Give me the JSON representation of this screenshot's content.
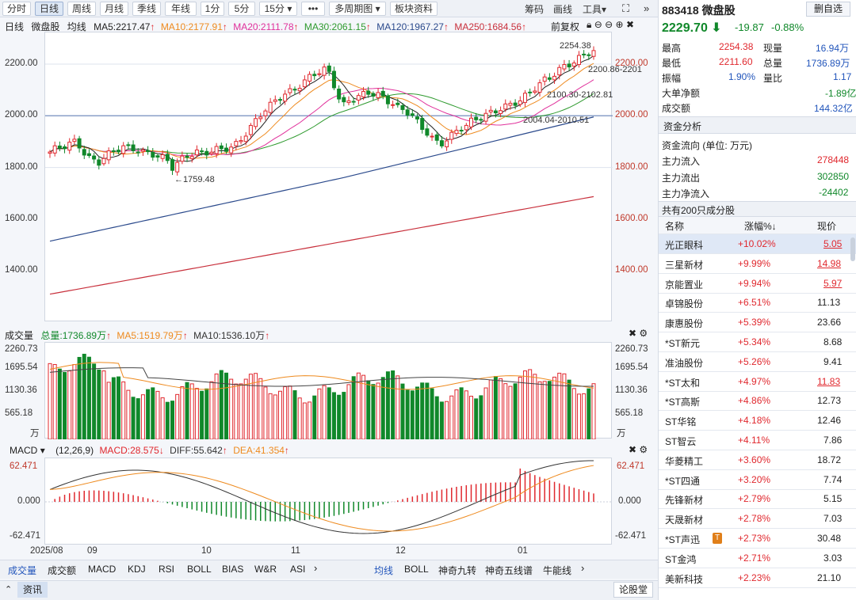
{
  "toolbar": {
    "buttons": [
      "分时",
      "日线",
      "周线",
      "月线",
      "季线",
      "年线",
      "1分",
      "5分",
      "15分",
      "•••",
      "多周期图",
      "板块资料"
    ],
    "right": [
      "筹码",
      "画线",
      "工具"
    ]
  },
  "legend_main": {
    "period": "日线",
    "name": "微盘股",
    "type": "均线",
    "ma5": "MA5:2217.47",
    "ma10": "MA10:2177.91",
    "ma20": "MA20:2111.78",
    "ma30": "MA30:2061.15",
    "ma120": "MA120:1967.27",
    "ma250": "MA250:1684.56",
    "adjust": "前复权"
  },
  "colors": {
    "ma5": "#222222",
    "ma10": "#ee8a1e",
    "ma20": "#e0309b",
    "ma30": "#2e9a2e",
    "ma120": "#2b4a8c",
    "ma250": "#c8303c",
    "up": "#e0282e",
    "down": "#10882a"
  },
  "main_axis": {
    "ticks": [
      "2200.00",
      "2000.00",
      "1800.00",
      "1600.00",
      "1400.00"
    ],
    "right_ticks": [
      "2200.00",
      "2000.00",
      "1800.00",
      "1600.00",
      "1400.00"
    ]
  },
  "annotations": {
    "high": "2254.38",
    "a1": "2200.86-2201",
    "a2": "2100.30-2102.81",
    "a3": "2004.04-2010.51",
    "low": "1759.48"
  },
  "volume": {
    "title": "成交量",
    "total": "总量:1736.89万",
    "ma5": "MA5:1519.79万",
    "ma10": "MA10:1536.10万",
    "ticks": [
      "2260.73",
      "1695.54",
      "1130.36",
      "565.18",
      "万"
    ]
  },
  "macd": {
    "title": "MACD",
    "params": "(12,26,9)",
    "macd": "MACD:28.575",
    "diff": "DIFF:55.642",
    "dea": "DEA:41.354",
    "ticks": [
      "62.471",
      "0.000",
      "-62.471"
    ]
  },
  "x_axis": [
    "2025/08",
    "09",
    "10",
    "11",
    "12",
    "01"
  ],
  "bottom_tabs_left": [
    "成交量",
    "成交额",
    "MACD",
    "KDJ",
    "RSI",
    "BOLL",
    "BIAS",
    "W&R",
    "ASI"
  ],
  "bottom_tabs_right": [
    "均线",
    "BOLL",
    "神奇九转",
    "神奇五线谱",
    "牛能线"
  ],
  "status": {
    "news": "资讯",
    "forum": "论股堂"
  },
  "quote": {
    "code": "883418",
    "name": "微盘股",
    "delete_btn": "删自选",
    "price": "2229.70",
    "change": "-19.87",
    "pct": "-0.88%",
    "stats": [
      {
        "l": "最高",
        "v": "2254.38",
        "l2": "现量",
        "v2": "16.94万"
      },
      {
        "l": "最低",
        "v": "2211.60",
        "l2": "总量",
        "v2": "1736.89万"
      },
      {
        "l": "振幅",
        "v": "1.90%",
        "l2": "量比",
        "v2": "1.17"
      }
    ],
    "big_net_label": "大单净额",
    "big_net": "-1.89亿",
    "turnover_label": "成交额",
    "turnover": "144.32亿"
  },
  "fund": {
    "section": "资金分析",
    "unit": "资金流向 (单位: 万元)",
    "inflow_label": "主力流入",
    "inflow": "278448",
    "outflow_label": "主力流出",
    "outflow": "302850",
    "net_label": "主力净流入",
    "net": "-24402"
  },
  "constituents": {
    "title": "共有200只成分股",
    "headers": [
      "名称",
      "涨幅%↓",
      "现价"
    ],
    "rows": [
      {
        "name": "光正眼科",
        "pct": "+10.02%",
        "price": "5.05"
      },
      {
        "name": "三星新材",
        "pct": "+9.99%",
        "price": "14.98"
      },
      {
        "name": "京能置业",
        "pct": "+9.94%",
        "price": "5.97"
      },
      {
        "name": "卓锦股份",
        "pct": "+6.51%",
        "price": "11.13"
      },
      {
        "name": "康惠股份",
        "pct": "+5.39%",
        "price": "23.66"
      },
      {
        "name": "*ST新元",
        "pct": "+5.34%",
        "price": "8.68"
      },
      {
        "name": "准油股份",
        "pct": "+5.26%",
        "price": "9.41"
      },
      {
        "name": "*ST太和",
        "pct": "+4.97%",
        "price": "11.83"
      },
      {
        "name": "*ST高斯",
        "pct": "+4.86%",
        "price": "12.73"
      },
      {
        "name": "ST华铭",
        "pct": "+4.18%",
        "price": "12.46"
      },
      {
        "name": "ST智云",
        "pct": "+4.11%",
        "price": "7.86"
      },
      {
        "name": "华菱精工",
        "pct": "+3.60%",
        "price": "18.72"
      },
      {
        "name": "*ST四通",
        "pct": "+3.20%",
        "price": "7.74"
      },
      {
        "name": "先锋新材",
        "pct": "+2.79%",
        "price": "5.15"
      },
      {
        "name": "天晟新材",
        "pct": "+2.78%",
        "price": "7.03"
      },
      {
        "name": "*ST声迅",
        "pct": "+2.73%",
        "price": "30.48"
      },
      {
        "name": "ST金鸿",
        "pct": "+2.71%",
        "price": "3.03"
      },
      {
        "name": "美新科技",
        "pct": "+2.23%",
        "price": "21.10"
      }
    ]
  }
}
